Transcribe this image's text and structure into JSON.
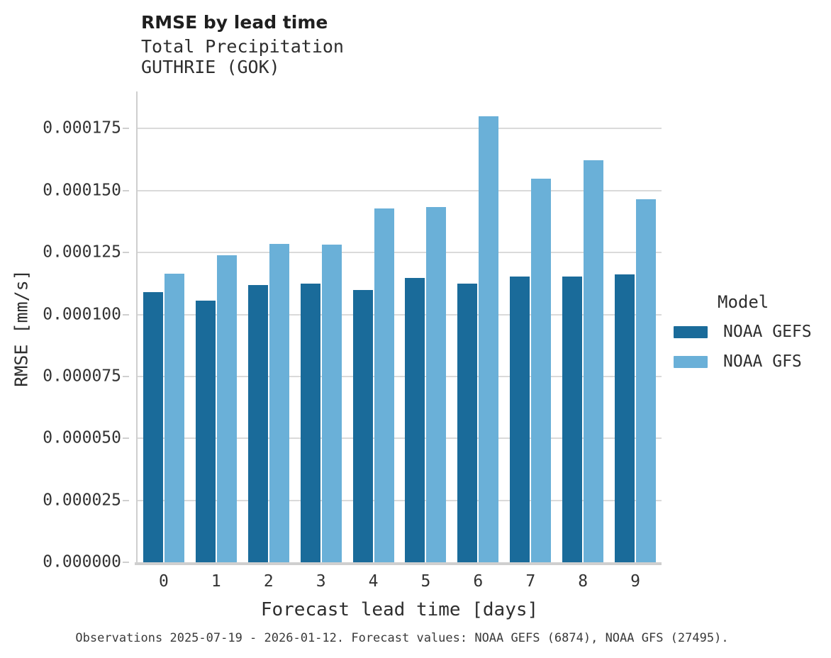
{
  "header": {
    "title": "RMSE by lead time",
    "subtitle1": "Total Precipitation",
    "subtitle2": "GUTHRIE (GOK)"
  },
  "chart_data": {
    "type": "bar",
    "title": "RMSE by lead time",
    "subtitle": [
      "Total Precipitation",
      "GUTHRIE (GOK)"
    ],
    "categories": [
      "0",
      "1",
      "2",
      "3",
      "4",
      "5",
      "6",
      "7",
      "8",
      "9"
    ],
    "series": [
      {
        "name": "NOAA GEFS",
        "color": "#1a6b9a",
        "values": [
          0.000109,
          0.0001057,
          0.0001118,
          0.0001126,
          0.0001099,
          0.0001149,
          0.0001124,
          0.0001154,
          0.0001153,
          0.0001163
        ]
      },
      {
        "name": "NOAA GFS",
        "color": "#6ab0d8",
        "values": [
          0.0001165,
          0.000124,
          0.0001284,
          0.0001281,
          0.0001429,
          0.0001434,
          0.00018,
          0.0001548,
          0.0001624,
          0.0001465
        ]
      }
    ],
    "xlabel": "Forecast lead time [days]",
    "ylabel": "RMSE [mm/s]",
    "ylim": [
      0,
      0.00019
    ],
    "yticks": [
      0,
      2.5e-05,
      5e-05,
      7.5e-05,
      0.0001,
      0.000125,
      0.00015,
      0.000175
    ],
    "ytick_labels": [
      "0.000000",
      "0.000025",
      "0.000050",
      "0.000075",
      "0.000100",
      "0.000125",
      "0.000150",
      "0.000175"
    ],
    "grid": "horizontal",
    "legend_title": "Model",
    "legend_position": "right",
    "gridline_color": "#dadada",
    "spine_color": "#cfcfcf"
  },
  "caption": "Observations 2025-07-19 - 2026-01-12. Forecast values: NOAA GEFS (6874), NOAA GFS (27495)."
}
